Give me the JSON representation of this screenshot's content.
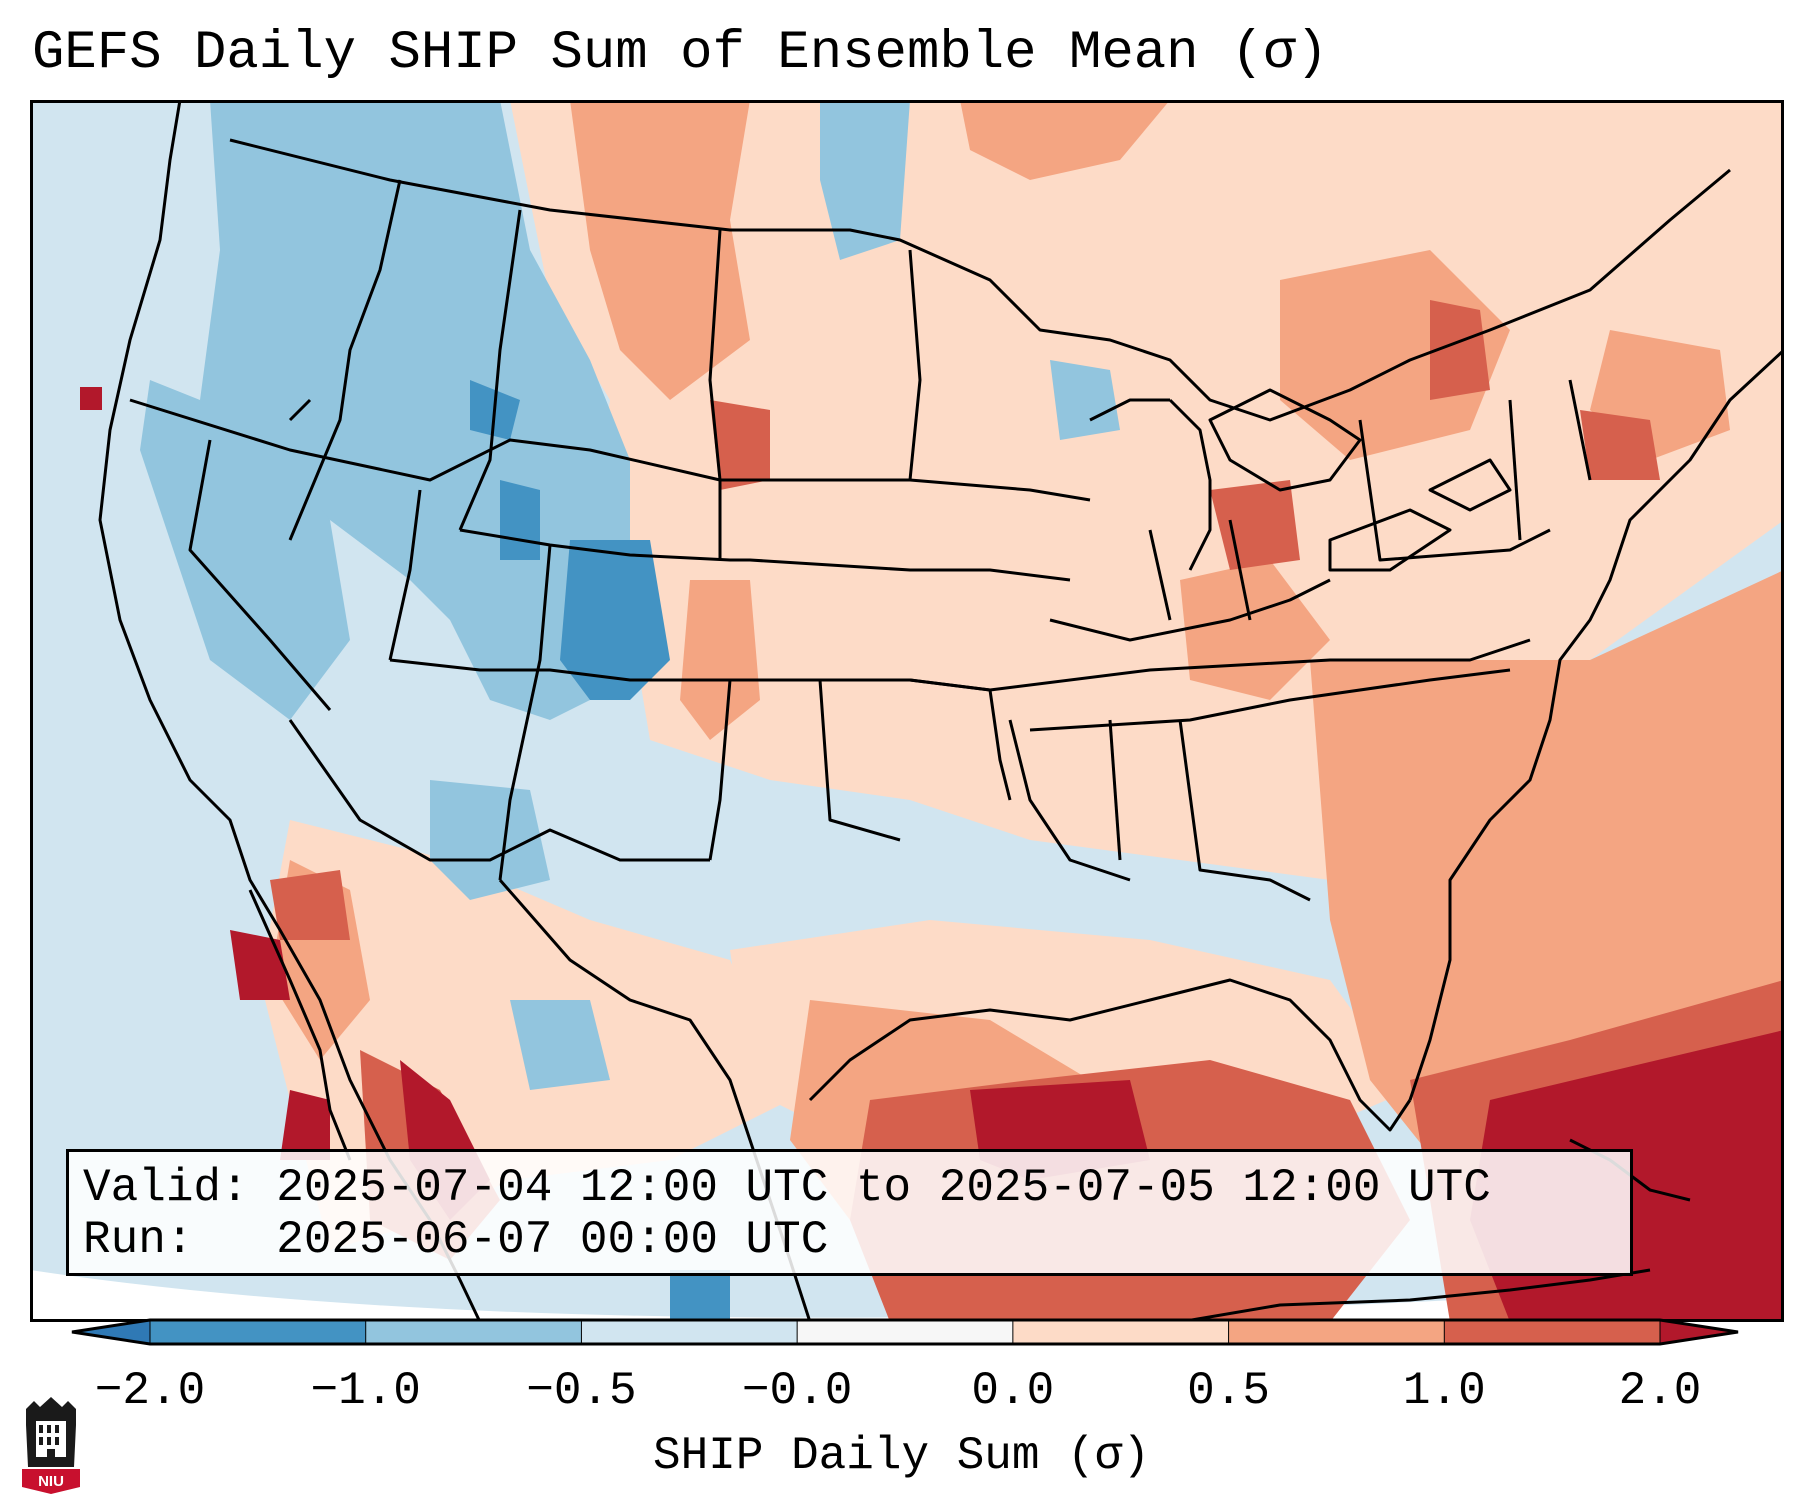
{
  "title": "GEFS Daily SHIP Sum of Ensemble Mean (σ)",
  "info": {
    "valid_label": "Valid:",
    "valid_value": "2025-07-04 12:00 UTC to 2025-07-05 12:00 UTC",
    "run_label": "Run:",
    "run_value": "2025-06-07 00:00 UTC"
  },
  "colorbar": {
    "ticks": [
      "−2.0",
      "−1.0",
      "−0.5",
      "−0.0",
      "0.0",
      "0.5",
      "1.0",
      "2.0"
    ],
    "label": "SHIP Daily Sum (σ)",
    "colors": [
      "#2f79b5",
      "#4393c3",
      "#92c5de",
      "#d1e5f0",
      "#f7f7f7",
      "#fddbc7",
      "#f4a582",
      "#d6604d",
      "#b2182b"
    ]
  },
  "map": {
    "projection": "Lambert Conformal",
    "region": "Continental United States"
  },
  "logo": {
    "text": "NIU"
  }
}
